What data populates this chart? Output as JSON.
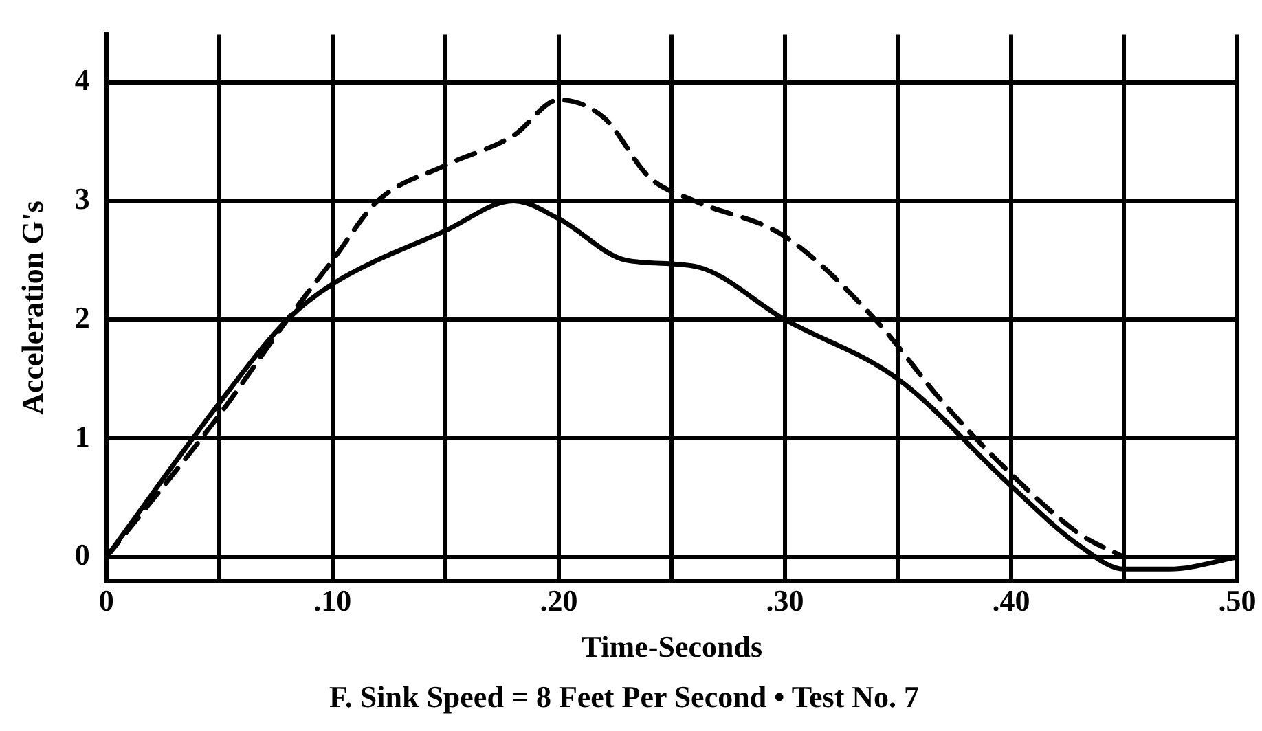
{
  "chart_data": {
    "type": "line",
    "title": "F. Sink Speed = 8 Feet Per Second • Test No. 7",
    "xlabel": "Time-Seconds",
    "ylabel": "Acceleration G's",
    "xlim": [
      0,
      0.5
    ],
    "ylim": [
      -0.2,
      4.4
    ],
    "xticks": [
      0,
      {
        "value": 0.05,
        "label": null
      },
      {
        "value": 0.1,
        "label": ".10"
      },
      {
        "value": 0.15,
        "label": null
      },
      {
        "value": 0.2,
        "label": ".20"
      },
      {
        "value": 0.25,
        "label": null
      },
      {
        "value": 0.3,
        "label": ".30"
      },
      {
        "value": 0.35,
        "label": null
      },
      {
        "value": 0.4,
        "label": ".40"
      },
      {
        "value": 0.45,
        "label": null
      },
      {
        "value": 0.5,
        "label": ".50"
      }
    ],
    "yticks": [
      0,
      1,
      2,
      3,
      4
    ],
    "grid": true,
    "legend": false,
    "marker": "none",
    "series": [
      {
        "color": "#000000",
        "line_style": "solid",
        "x": [
          0,
          0.05,
          0.08,
          0.1,
          0.15,
          0.18,
          0.2,
          0.23,
          0.26,
          0.3,
          0.35,
          0.4,
          0.43,
          0.45,
          0.47,
          0.5
        ],
        "values": [
          0,
          1.3,
          2,
          2.3,
          2.75,
          3.0,
          2.85,
          2.5,
          2.45,
          2.0,
          1.5,
          0.6,
          0.1,
          -0.1,
          -0.1,
          0
        ]
      },
      {
        "color": "#000000",
        "line_style": "dashed",
        "x": [
          0,
          0.05,
          0.08,
          0.1,
          0.12,
          0.15,
          0.18,
          0.2,
          0.22,
          0.24,
          0.26,
          0.3,
          0.34,
          0.37,
          0.4,
          0.43,
          0.45
        ],
        "values": [
          0,
          1.2,
          2,
          2.5,
          3.0,
          3.3,
          3.55,
          3.85,
          3.7,
          3.2,
          3.0,
          2.7,
          2.0,
          1.3,
          0.7,
          0.2,
          0
        ]
      }
    ]
  }
}
